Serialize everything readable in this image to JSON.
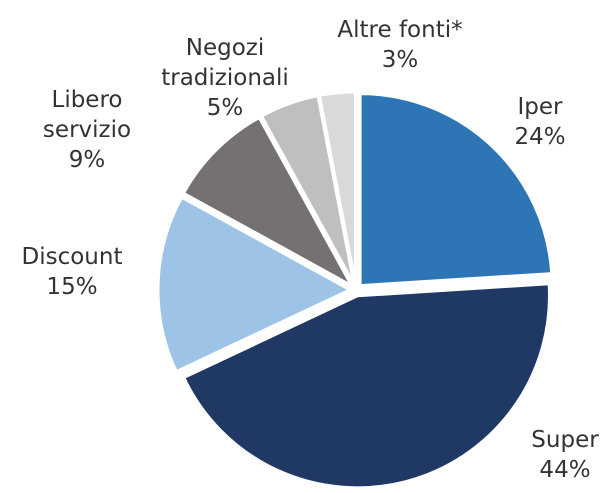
{
  "chart_data": {
    "type": "pie",
    "categories": [
      "Iper",
      "Super",
      "Discount",
      "Libero\nservizio",
      "Negozi\ntradizionali",
      "Altre fonti*"
    ],
    "values": [
      24,
      44,
      15,
      9,
      5,
      3
    ],
    "value_labels": [
      "24%",
      "44%",
      "15%",
      "9%",
      "5%",
      "3%"
    ],
    "colors": [
      "#2e75b6",
      "#203864",
      "#9dc3e6",
      "#767171",
      "#bfbfbf",
      "#d9d9d9"
    ]
  }
}
